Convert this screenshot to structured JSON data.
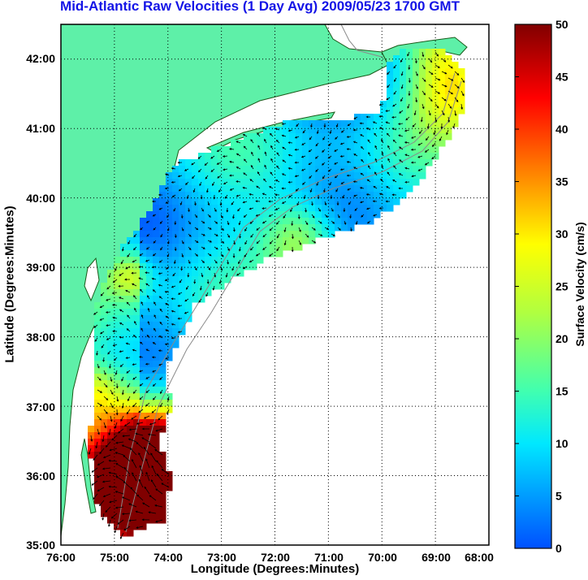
{
  "title": "Mid-Atlantic Raw Velocities (1 Day Avg) 2009/05/23 1700 GMT",
  "xlabel": "Longitude (Degrees:Minutes)",
  "ylabel": "Latitude (Degrees:Minutes)",
  "colorbar_label": "Surface Velocity (cm/s)",
  "chart_data": {
    "type": "heatmap",
    "x_ticks": [
      "76:00",
      "75:00",
      "74:00",
      "73:00",
      "72:00",
      "71:00",
      "70:00",
      "69:00",
      "68:00"
    ],
    "y_ticks": [
      "35:00",
      "36:00",
      "37:00",
      "38:00",
      "39:00",
      "40:00",
      "41:00",
      "42:00"
    ],
    "xlim": [
      -76,
      -68
    ],
    "ylim": [
      35,
      42.5
    ],
    "grid": true,
    "colorbar": {
      "min": 0,
      "max": 50,
      "ticks": [
        "0",
        "5",
        "10",
        "15",
        "20",
        "25",
        "30",
        "35",
        "40",
        "45",
        "50"
      ]
    },
    "colors": {
      "land": "#5ef0a8",
      "title": "#1414e6"
    }
  }
}
